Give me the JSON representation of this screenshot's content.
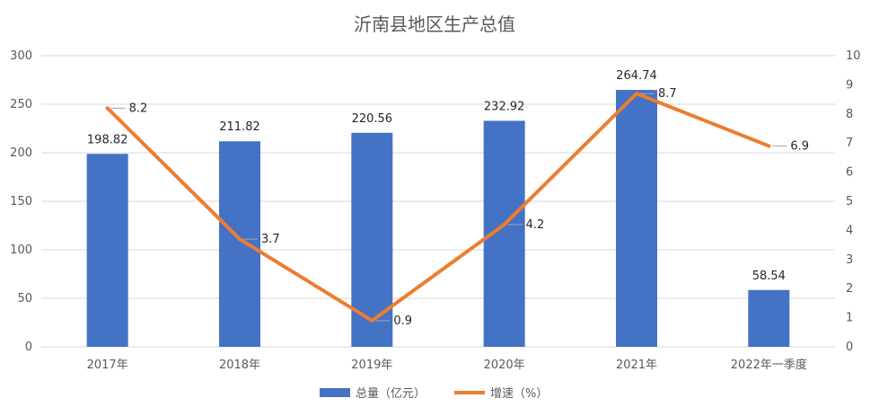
{
  "chart_data": {
    "type": "bar+line",
    "title": "沂南县地区生产总值",
    "categories": [
      "2017年",
      "2018年",
      "2019年",
      "2020年",
      "2021年",
      "2022年一季度"
    ],
    "series": [
      {
        "name": "总量（亿元）",
        "type": "bar",
        "axis": "left",
        "values": [
          198.82,
          211.82,
          220.56,
          232.92,
          264.74,
          58.54
        ],
        "labels": [
          "198.82",
          "211.82",
          "220.56",
          "232.92",
          "264.74",
          "58.54"
        ]
      },
      {
        "name": "增速（%）",
        "type": "line",
        "axis": "right",
        "values": [
          8.2,
          3.7,
          0.9,
          4.2,
          8.7,
          6.9
        ],
        "labels": [
          "8.2",
          "3.7",
          "0.9",
          "4.2",
          "8.7",
          "6.9"
        ]
      }
    ],
    "y_left": {
      "min": 0,
      "max": 300,
      "ticks": [
        "0",
        "50",
        "100",
        "150",
        "200",
        "250",
        "300"
      ]
    },
    "y_right": {
      "min": 0,
      "max": 10,
      "ticks": [
        "0",
        "1",
        "2",
        "3",
        "4",
        "5",
        "6",
        "7",
        "8",
        "9",
        "10"
      ]
    },
    "grid": true,
    "legend_position": "bottom",
    "colors": {
      "bar": "#4472C4",
      "line": "#ED7D31",
      "grid": "#D9D9D9",
      "text": "#595959"
    }
  }
}
